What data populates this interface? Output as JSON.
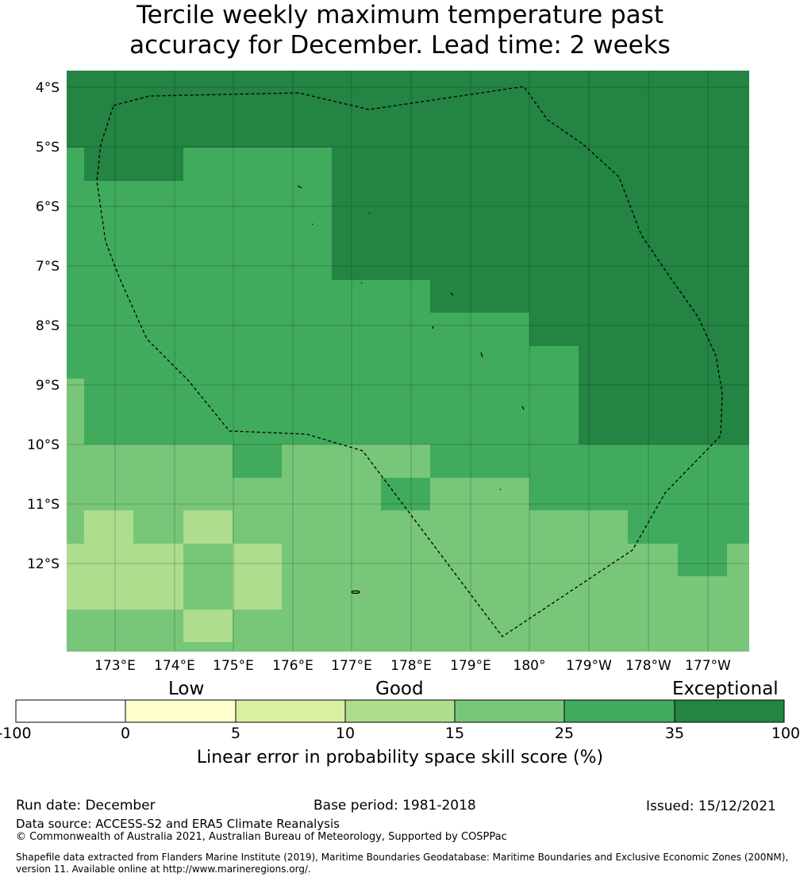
{
  "title": {
    "line1": "Tercile weekly maximum temperature past",
    "line2": "accuracy for December. Lead time: 2 weeks"
  },
  "map": {
    "lat_labels": [
      "4°S",
      "5°S",
      "6°S",
      "7°S",
      "8°S",
      "9°S",
      "10°S",
      "11°S",
      "12°S"
    ],
    "lon_labels": [
      "173°E",
      "174°E",
      "175°E",
      "176°E",
      "177°E",
      "178°E",
      "179°E",
      "180°",
      "179°W",
      "178°W",
      "177°W"
    ],
    "category_colors": {
      "c5": "#aedd8e",
      "c15": "#78c679",
      "c25": "#41ab5d",
      "c35": "#238443"
    }
  },
  "colorbar": {
    "quality_words": [
      "Low",
      "Good",
      "Exceptional"
    ],
    "ticks": [
      "-100",
      "0",
      "5",
      "10",
      "15",
      "25",
      "35",
      "100"
    ],
    "colors": [
      "#ffffff",
      "#ffffcc",
      "#d9f0a3",
      "#aedd8e",
      "#78c679",
      "#41ab5d",
      "#238443"
    ],
    "label": "Linear error in probability space skill score (%)"
  },
  "footer": {
    "run_date": "Run date: December",
    "base_period": "Base period: 1981-2018",
    "issued": "Issued: 15/12/2021",
    "data_source": "Data source: ACCESS-S2 and ERA5 Climate Reanalysis",
    "copyright": "© Commonwealth of Australia 2021, Australian Bureau of Meteorology, Supported by COSPPac",
    "shapefile": "Shapefile data extracted from Flanders Marine Institute (2019), Maritime Boundaries Geodatabase: Maritime Boundaries and Exclusive Economic Zones (200NM), version 11. Available online at http://www.marineregions.org/."
  }
}
